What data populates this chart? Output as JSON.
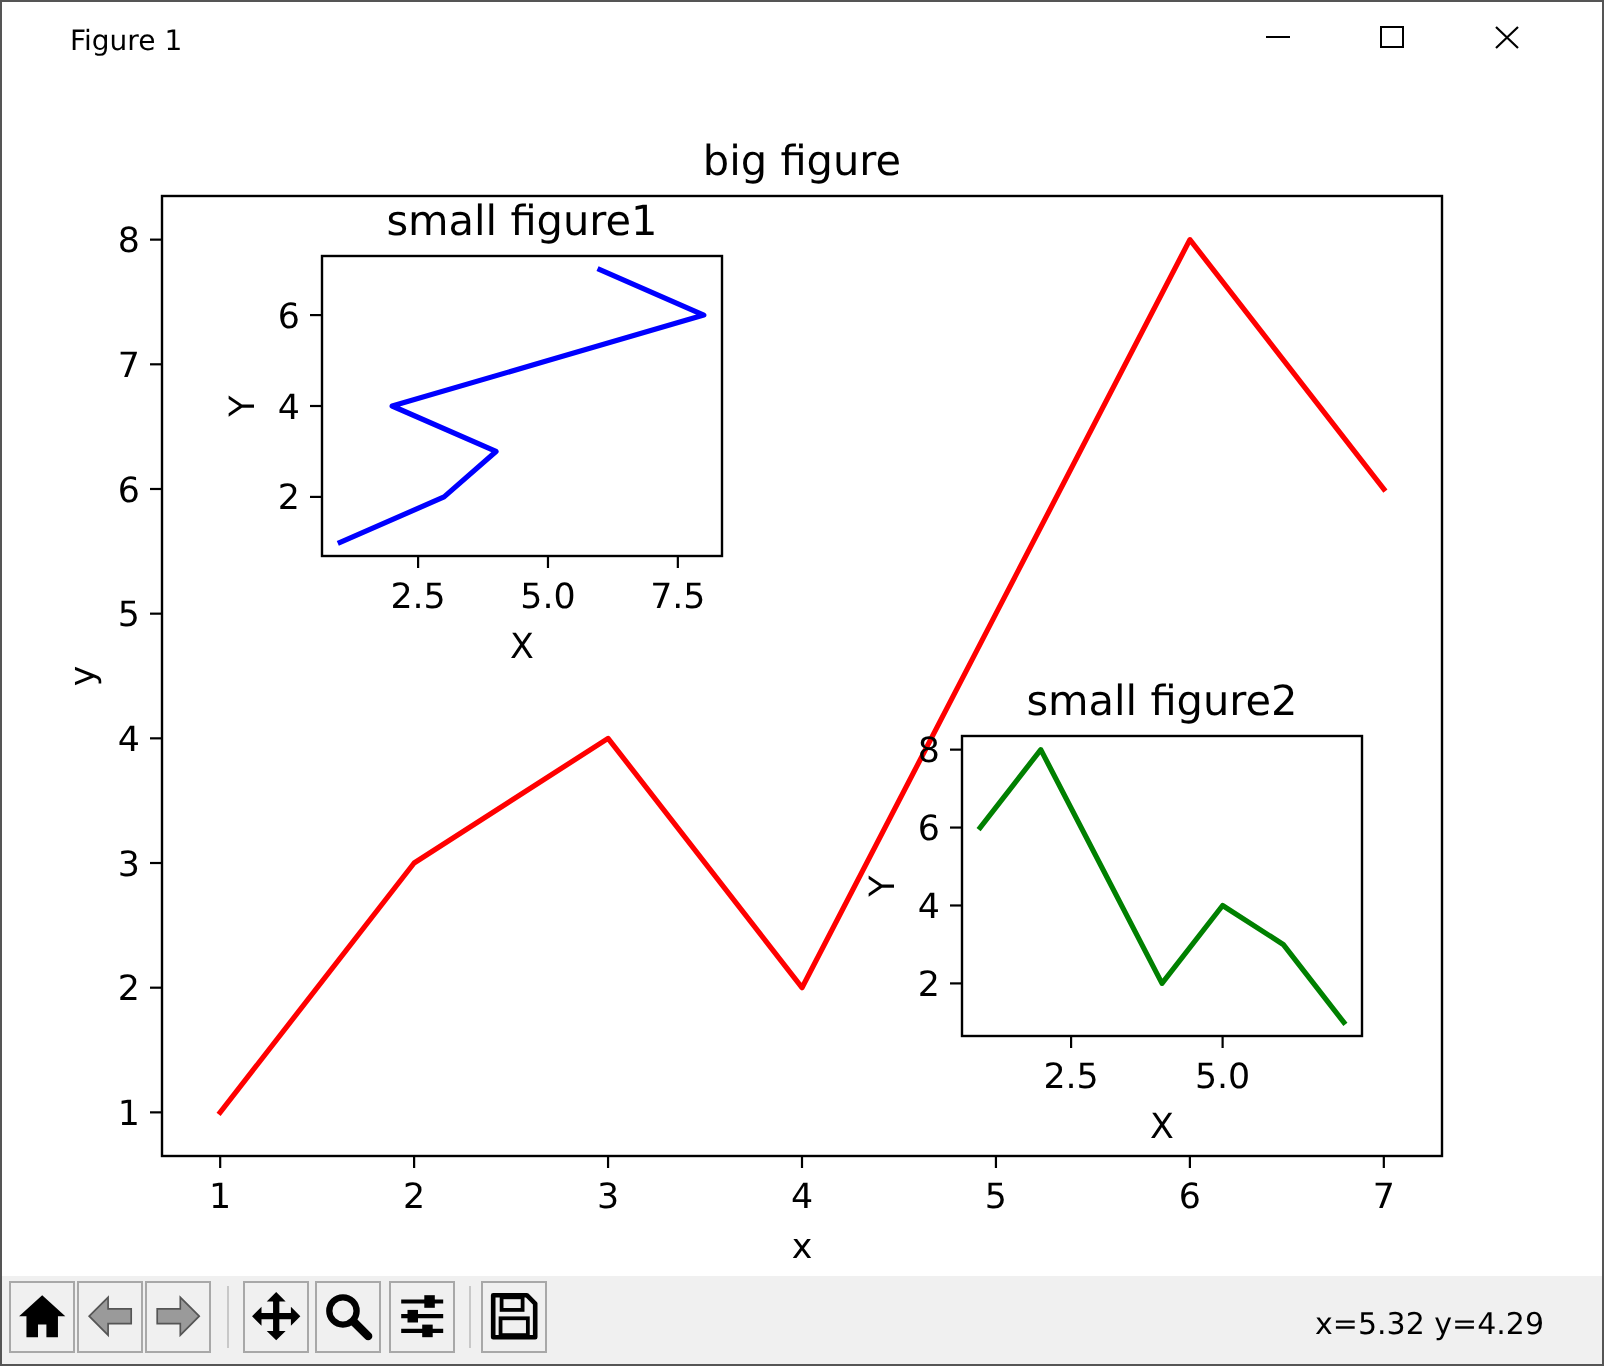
{
  "chart_data": [
    {
      "type": "line",
      "title": "big figure",
      "xlabel": "x",
      "ylabel": "y",
      "x": [
        1,
        2,
        3,
        4,
        5,
        6,
        7
      ],
      "values": [
        1,
        3,
        4,
        2,
        5,
        8,
        6
      ],
      "color": "#ff0000",
      "xlim": [
        0.7,
        7.3
      ],
      "ylim": [
        0.65,
        8.35
      ],
      "xticks": [
        1,
        2,
        3,
        4,
        5,
        6,
        7
      ],
      "yticks": [
        1,
        2,
        3,
        4,
        5,
        6,
        7,
        8
      ],
      "annotations": [
        "Figure 1",
        "x=5.32 y=4.29"
      ]
    },
    {
      "type": "line",
      "title": "small figure1",
      "xlabel": "X",
      "ylabel": "Y",
      "x": [
        1,
        3,
        4,
        2,
        5,
        8,
        6
      ],
      "values": [
        1,
        2,
        3,
        4,
        5,
        6,
        7
      ],
      "color": "#0000ff",
      "xlim": [
        0.65,
        8.35
      ],
      "ylim": [
        0.7,
        7.3
      ],
      "xticks": [
        2.5,
        {
          "value": 5,
          "label": "5.0"
        },
        7.5
      ],
      "yticks": [
        2,
        4,
        6
      ]
    },
    {
      "type": "line",
      "title": "small figure2",
      "xlabel": "X",
      "ylabel": "Y",
      "x": [
        1,
        2,
        3,
        4,
        5,
        6,
        7
      ],
      "values": [
        6,
        8,
        5,
        2,
        4,
        3,
        1
      ],
      "color": "#008000",
      "xlim": [
        0.7,
        7.3
      ],
      "ylim": [
        0.65,
        8.35
      ],
      "xticks": [
        2.5,
        {
          "value": 5,
          "label": "5.0"
        }
      ],
      "yticks": [
        2,
        4,
        6,
        8
      ]
    }
  ]
}
